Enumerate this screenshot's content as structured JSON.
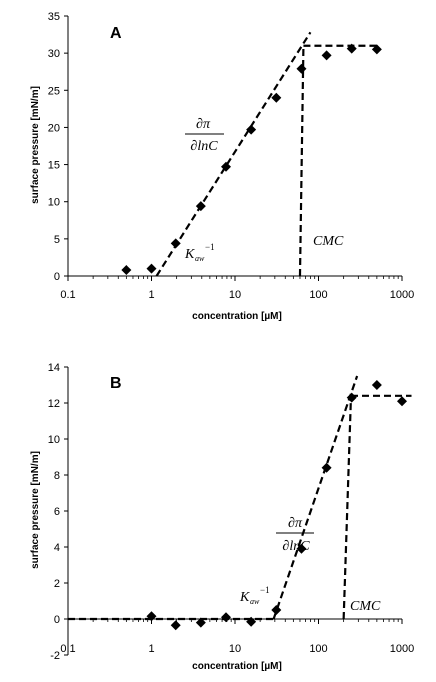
{
  "chart_data": [
    {
      "type": "scatter",
      "panel_label": "A",
      "xlabel": "concentration [µM]",
      "ylabel": "surface pressure [mN/m]",
      "x_scale": "log",
      "xlim": [
        0.1,
        1000
      ],
      "ylim": [
        0,
        35
      ],
      "x_ticks": [
        "0.1",
        "1",
        "10",
        "100",
        "1000"
      ],
      "y_ticks": [
        "0",
        "5",
        "10",
        "15",
        "20",
        "25",
        "30",
        "35"
      ],
      "points": [
        {
          "x": 0.5,
          "y": 0.8
        },
        {
          "x": 1.0,
          "y": 1.0
        },
        {
          "x": 1.95,
          "y": 4.4
        },
        {
          "x": 3.9,
          "y": 9.4
        },
        {
          "x": 7.8,
          "y": 14.7
        },
        {
          "x": 15.6,
          "y": 19.7
        },
        {
          "x": 31.25,
          "y": 24.0
        },
        {
          "x": 62.5,
          "y": 27.9
        },
        {
          "x": 125,
          "y": 29.7
        },
        {
          "x": 250,
          "y": 30.6
        },
        {
          "x": 500,
          "y": 30.5
        }
      ],
      "fit_lines": [
        {
          "points": [
            [
              1.15,
              0
            ],
            [
              80,
              32.8
            ]
          ]
        },
        {
          "points": [
            [
              60,
              0
            ],
            [
              66,
              31
            ]
          ]
        },
        {
          "points": [
            [
              66,
              31
            ],
            [
              500,
              31
            ]
          ]
        }
      ],
      "annotations": {
        "slope_numerator": "∂π",
        "slope_denominator": "∂lnC",
        "k_main": "K",
        "k_sub": "aw",
        "k_sup": "−1",
        "cmc": "CMC"
      }
    },
    {
      "type": "scatter",
      "panel_label": "B",
      "xlabel": "concentration [µM]",
      "ylabel": "surface pressure [mN/m]",
      "x_scale": "log",
      "xlim": [
        0.1,
        1000
      ],
      "ylim": [
        -2,
        14
      ],
      "x_ticks": [
        "0.1",
        "1",
        "10",
        "100",
        "1000"
      ],
      "y_ticks": [
        "-2",
        "0",
        "2",
        "4",
        "6",
        "8",
        "10",
        "12",
        "14"
      ],
      "points": [
        {
          "x": 1.0,
          "y": 0.15
        },
        {
          "x": 1.95,
          "y": -0.35
        },
        {
          "x": 3.9,
          "y": -0.2
        },
        {
          "x": 7.8,
          "y": 0.1
        },
        {
          "x": 15.6,
          "y": -0.15
        },
        {
          "x": 31.25,
          "y": 0.5
        },
        {
          "x": 62.5,
          "y": 3.9
        },
        {
          "x": 125,
          "y": 8.4
        },
        {
          "x": 250,
          "y": 12.3
        },
        {
          "x": 500,
          "y": 13.0
        },
        {
          "x": 1000,
          "y": 12.1
        }
      ],
      "fit_lines": [
        {
          "points": [
            [
              0.1,
              0
            ],
            [
              29,
              0
            ]
          ]
        },
        {
          "points": [
            [
              29,
              0
            ],
            [
              290,
              13.5
            ]
          ]
        },
        {
          "points": [
            [
              200,
              0
            ],
            [
              245,
              12.4
            ]
          ]
        },
        {
          "points": [
            [
              245,
              12.4
            ],
            [
              1300,
              12.4
            ]
          ]
        }
      ],
      "annotations": {
        "slope_numerator": "∂π",
        "slope_denominator": "∂lnC",
        "k_main": "K",
        "k_sub": "aw",
        "k_sup": "−1",
        "cmc": "CMC"
      }
    }
  ]
}
